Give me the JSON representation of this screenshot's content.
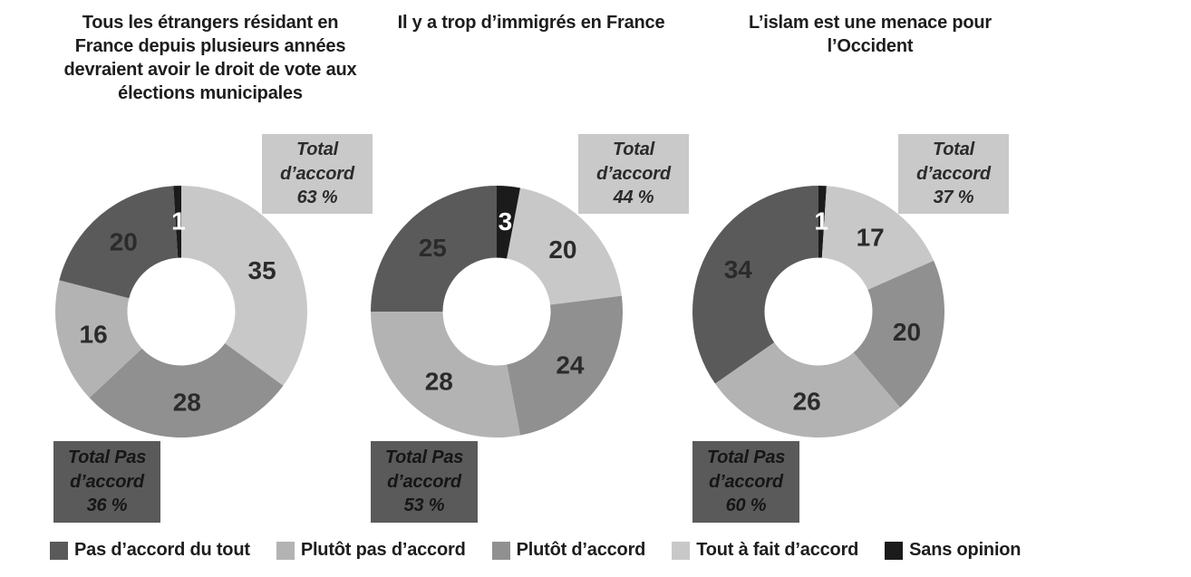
{
  "chart_data": [
    {
      "type": "pie",
      "subtype": "donut",
      "title": "Tous les étrangers résidant en France depuis plusieurs années devraient avoir le droit de vote aux élections municipales",
      "title_lines": [
        "Tous les étrangers résidant en",
        "France depuis plusieurs années",
        "devraient avoir le droit de vote aux",
        "élections municipales"
      ],
      "segments": [
        {
          "label": "Tout à fait d’accord",
          "value": 35,
          "color": "#c8c8c8",
          "label_color": "#2b2b2b"
        },
        {
          "label": "Plutôt d’accord",
          "value": 28,
          "color": "#909090",
          "label_color": "#2b2b2b"
        },
        {
          "label": "Plutôt pas d’accord",
          "value": 16,
          "color": "#b3b3b3",
          "label_color": "#2b2b2b"
        },
        {
          "label": "Pas d’accord du tout",
          "value": 20,
          "color": "#5a5a5a",
          "label_color": "#2b2b2b"
        },
        {
          "label": "Sans opinion",
          "value": 1,
          "color": "#1b1b1b",
          "label_color": "#ffffff"
        }
      ],
      "annotations": {
        "agree": {
          "lines": [
            "Total",
            "d’accord",
            "63 %"
          ],
          "value_pct": 63,
          "bg": "#c9c9c9",
          "text_color": "#2b2b2b"
        },
        "disagree": {
          "lines": [
            "Total Pas",
            "d’accord",
            "36 %"
          ],
          "value_pct": 36,
          "bg": "#5a5a5a",
          "text_color": "#161616"
        }
      }
    },
    {
      "type": "pie",
      "subtype": "donut",
      "title": "Il y a trop d’immigrés en France",
      "title_lines": [
        "Il y a trop d’immigrés en France"
      ],
      "segments": [
        {
          "label": "Sans opinion",
          "value": 3,
          "color": "#1b1b1b",
          "label_color": "#ffffff"
        },
        {
          "label": "Tout à fait d’accord",
          "value": 20,
          "color": "#c8c8c8",
          "label_color": "#2b2b2b"
        },
        {
          "label": "Plutôt d’accord",
          "value": 24,
          "color": "#909090",
          "label_color": "#2b2b2b"
        },
        {
          "label": "Plutôt pas d’accord",
          "value": 28,
          "color": "#b3b3b3",
          "label_color": "#2b2b2b"
        },
        {
          "label": "Pas d’accord du tout",
          "value": 25,
          "color": "#5a5a5a",
          "label_color": "#2b2b2b"
        }
      ],
      "annotations": {
        "agree": {
          "lines": [
            "Total",
            "d’accord",
            "44 %"
          ],
          "value_pct": 44,
          "bg": "#c9c9c9",
          "text_color": "#2b2b2b"
        },
        "disagree": {
          "lines": [
            "Total Pas",
            "d’accord",
            "53 %"
          ],
          "value_pct": 53,
          "bg": "#5a5a5a",
          "text_color": "#161616"
        }
      }
    },
    {
      "type": "pie",
      "subtype": "donut",
      "title": "L’islam est une menace pour l’Occident",
      "title_lines": [
        "L’islam est une menace pour",
        "l’Occident"
      ],
      "segments": [
        {
          "label": "Sans opinion",
          "value": 1,
          "color": "#1b1b1b",
          "label_color": "#ffffff"
        },
        {
          "label": "Tout à fait d’accord",
          "value": 17,
          "color": "#c8c8c8",
          "label_color": "#2b2b2b"
        },
        {
          "label": "Plutôt d’accord",
          "value": 20,
          "color": "#909090",
          "label_color": "#2b2b2b"
        },
        {
          "label": "Plutôt pas d’accord",
          "value": 26,
          "color": "#b3b3b3",
          "label_color": "#2b2b2b"
        },
        {
          "label": "Pas d’accord du tout",
          "value": 34,
          "color": "#5a5a5a",
          "label_color": "#2b2b2b"
        }
      ],
      "annotations": {
        "agree": {
          "lines": [
            "Total",
            "d’accord",
            "37 %"
          ],
          "value_pct": 37,
          "bg": "#c9c9c9",
          "text_color": "#2b2b2b"
        },
        "disagree": {
          "lines": [
            "Total Pas",
            "d’accord",
            "60 %"
          ],
          "value_pct": 60,
          "bg": "#5a5a5a",
          "text_color": "#161616"
        }
      }
    }
  ],
  "legend": {
    "items": [
      {
        "label": "Pas d’accord du tout",
        "color": "#5a5a5a"
      },
      {
        "label": "Plutôt pas d’accord",
        "color": "#b3b3b3"
      },
      {
        "label": "Plutôt d’accord",
        "color": "#909090"
      },
      {
        "label": "Tout à fait d’accord",
        "color": "#c8c8c8"
      },
      {
        "label": "Sans opinion",
        "color": "#1b1b1b"
      }
    ]
  },
  "colors": {
    "background": "#ffffff",
    "donut_hole": "#fffefa",
    "strongly_disagree": "#5a5a5a",
    "somewhat_disagree": "#b3b3b3",
    "somewhat_agree": "#909090",
    "strongly_agree": "#c8c8c8",
    "no_opinion": "#1b1b1b",
    "agree_box_bg": "#c9c9c9",
    "disagree_box_bg": "#5a5a5a"
  }
}
